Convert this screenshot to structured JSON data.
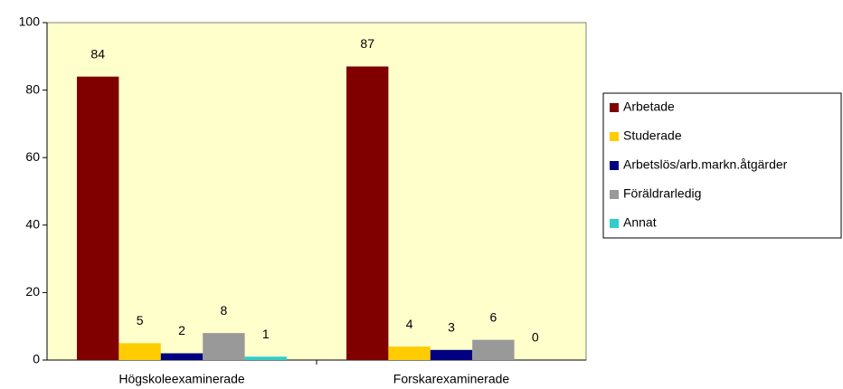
{
  "chart_data": {
    "type": "bar",
    "categories": [
      "Högskoleexaminerade",
      "Forskarexaminerade"
    ],
    "series": [
      {
        "name": "Arbetade",
        "color": "#800000",
        "values": [
          84,
          87
        ]
      },
      {
        "name": "Studerade",
        "color": "#FFCC00",
        "values": [
          5,
          4
        ]
      },
      {
        "name": "Arbetslös/arb.markn.åtgärder",
        "color": "#000080",
        "values": [
          2,
          3
        ]
      },
      {
        "name": "Föräldrarledig",
        "color": "#999999",
        "values": [
          8,
          6
        ]
      },
      {
        "name": "Annat",
        "color": "#33CCCC",
        "values": [
          1,
          0
        ]
      }
    ],
    "ylim": [
      0,
      100
    ],
    "yticks": [
      0,
      20,
      40,
      60,
      80,
      100
    ],
    "legend": "right"
  }
}
